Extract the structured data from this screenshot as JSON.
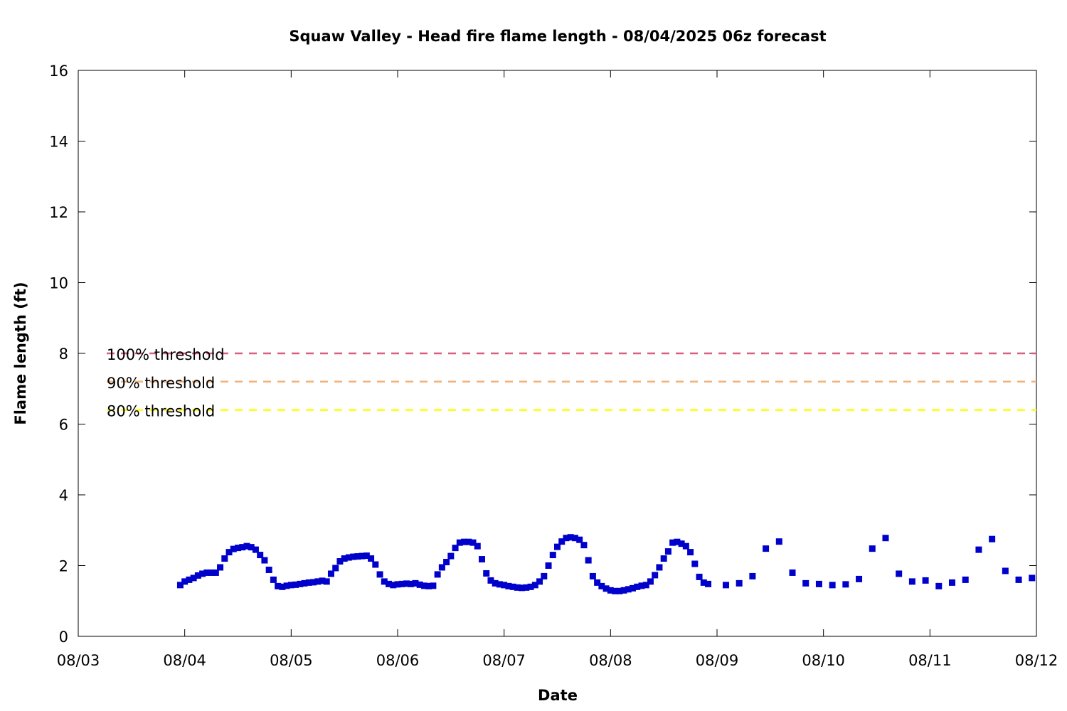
{
  "chart_data": {
    "type": "scatter",
    "title": "Squaw Valley - Head fire flame length - 08/04/2025 06z forecast",
    "xlabel": "Date",
    "ylabel": "Flame length (ft)",
    "xlim": [
      "2025-08-03T00:00",
      "2025-08-12T00:00"
    ],
    "ylim": [
      0,
      16
    ],
    "x_ticks": [
      "08/03",
      "08/04",
      "08/05",
      "08/06",
      "08/07",
      "08/08",
      "08/09",
      "08/10",
      "08/11",
      "08/12"
    ],
    "y_ticks": [
      0,
      2,
      4,
      6,
      8,
      10,
      12,
      14,
      16
    ],
    "grid": false,
    "legend_position": "left",
    "thresholds": [
      {
        "name": "100% threshold",
        "value": 8.0,
        "color": "#d95f7e",
        "style": "dashed"
      },
      {
        "name": "90% threshold",
        "value": 7.2,
        "color": "#f2b27a",
        "style": "dashed"
      },
      {
        "name": "80% threshold",
        "value": 6.4,
        "color": "#ffff00",
        "style": "dashed"
      }
    ],
    "series": [
      {
        "color": "#0000cc",
        "marker": "square",
        "x": [
          "2025-08-03T23:00",
          "2025-08-04T00:00",
          "2025-08-04T01:00",
          "2025-08-04T02:00",
          "2025-08-04T03:00",
          "2025-08-04T04:00",
          "2025-08-04T05:00",
          "2025-08-04T06:00",
          "2025-08-04T07:00",
          "2025-08-04T08:00",
          "2025-08-04T09:00",
          "2025-08-04T10:00",
          "2025-08-04T11:00",
          "2025-08-04T12:00",
          "2025-08-04T13:00",
          "2025-08-04T14:00",
          "2025-08-04T15:00",
          "2025-08-04T16:00",
          "2025-08-04T17:00",
          "2025-08-04T18:00",
          "2025-08-04T19:00",
          "2025-08-04T20:00",
          "2025-08-04T21:00",
          "2025-08-04T22:00",
          "2025-08-04T23:00",
          "2025-08-05T00:00",
          "2025-08-05T01:00",
          "2025-08-05T02:00",
          "2025-08-05T03:00",
          "2025-08-05T04:00",
          "2025-08-05T05:00",
          "2025-08-05T06:00",
          "2025-08-05T07:00",
          "2025-08-05T08:00",
          "2025-08-05T09:00",
          "2025-08-05T10:00",
          "2025-08-05T11:00",
          "2025-08-05T12:00",
          "2025-08-05T13:00",
          "2025-08-05T14:00",
          "2025-08-05T15:00",
          "2025-08-05T16:00",
          "2025-08-05T17:00",
          "2025-08-05T18:00",
          "2025-08-05T19:00",
          "2025-08-05T20:00",
          "2025-08-05T21:00",
          "2025-08-05T22:00",
          "2025-08-05T23:00",
          "2025-08-06T00:00",
          "2025-08-06T01:00",
          "2025-08-06T02:00",
          "2025-08-06T03:00",
          "2025-08-06T04:00",
          "2025-08-06T05:00",
          "2025-08-06T06:00",
          "2025-08-06T07:00",
          "2025-08-06T08:00",
          "2025-08-06T09:00",
          "2025-08-06T10:00",
          "2025-08-06T11:00",
          "2025-08-06T12:00",
          "2025-08-06T13:00",
          "2025-08-06T14:00",
          "2025-08-06T15:00",
          "2025-08-06T16:00",
          "2025-08-06T17:00",
          "2025-08-06T18:00",
          "2025-08-06T19:00",
          "2025-08-06T20:00",
          "2025-08-06T21:00",
          "2025-08-06T22:00",
          "2025-08-06T23:00",
          "2025-08-07T00:00",
          "2025-08-07T01:00",
          "2025-08-07T02:00",
          "2025-08-07T03:00",
          "2025-08-07T04:00",
          "2025-08-07T05:00",
          "2025-08-07T06:00",
          "2025-08-07T07:00",
          "2025-08-07T08:00",
          "2025-08-07T09:00",
          "2025-08-07T10:00",
          "2025-08-07T11:00",
          "2025-08-07T12:00",
          "2025-08-07T13:00",
          "2025-08-07T14:00",
          "2025-08-07T15:00",
          "2025-08-07T16:00",
          "2025-08-07T17:00",
          "2025-08-07T18:00",
          "2025-08-07T19:00",
          "2025-08-07T20:00",
          "2025-08-07T21:00",
          "2025-08-07T22:00",
          "2025-08-07T23:00",
          "2025-08-08T00:00",
          "2025-08-08T01:00",
          "2025-08-08T02:00",
          "2025-08-08T03:00",
          "2025-08-08T04:00",
          "2025-08-08T05:00",
          "2025-08-08T06:00",
          "2025-08-08T07:00",
          "2025-08-08T08:00",
          "2025-08-08T09:00",
          "2025-08-08T10:00",
          "2025-08-08T11:00",
          "2025-08-08T12:00",
          "2025-08-08T13:00",
          "2025-08-08T14:00",
          "2025-08-08T15:00",
          "2025-08-08T16:00",
          "2025-08-08T17:00",
          "2025-08-08T18:00",
          "2025-08-08T19:00",
          "2025-08-08T20:00",
          "2025-08-08T21:00",
          "2025-08-08T22:00",
          "2025-08-09T02:00",
          "2025-08-09T05:00",
          "2025-08-09T08:00",
          "2025-08-09T11:00",
          "2025-08-09T14:00",
          "2025-08-09T17:00",
          "2025-08-09T20:00",
          "2025-08-09T23:00",
          "2025-08-10T02:00",
          "2025-08-10T05:00",
          "2025-08-10T08:00",
          "2025-08-10T11:00",
          "2025-08-10T14:00",
          "2025-08-10T17:00",
          "2025-08-10T20:00",
          "2025-08-10T23:00",
          "2025-08-11T02:00",
          "2025-08-11T05:00",
          "2025-08-11T08:00",
          "2025-08-11T11:00",
          "2025-08-11T14:00",
          "2025-08-11T17:00",
          "2025-08-11T20:00",
          "2025-08-11T23:00"
        ],
        "y": [
          1.45,
          1.55,
          1.6,
          1.65,
          1.72,
          1.77,
          1.8,
          1.8,
          1.8,
          1.95,
          2.2,
          2.38,
          2.47,
          2.5,
          2.52,
          2.55,
          2.52,
          2.45,
          2.3,
          2.15,
          1.88,
          1.6,
          1.42,
          1.4,
          1.43,
          1.45,
          1.46,
          1.48,
          1.5,
          1.52,
          1.53,
          1.55,
          1.57,
          1.55,
          1.77,
          1.93,
          2.12,
          2.2,
          2.23,
          2.25,
          2.26,
          2.27,
          2.28,
          2.2,
          2.03,
          1.75,
          1.55,
          1.48,
          1.45,
          1.47,
          1.48,
          1.49,
          1.48,
          1.5,
          1.46,
          1.43,
          1.42,
          1.43,
          1.75,
          1.95,
          2.1,
          2.27,
          2.5,
          2.65,
          2.67,
          2.67,
          2.65,
          2.55,
          2.18,
          1.78,
          1.58,
          1.5,
          1.47,
          1.45,
          1.42,
          1.4,
          1.38,
          1.37,
          1.38,
          1.4,
          1.45,
          1.55,
          1.7,
          2.0,
          2.3,
          2.53,
          2.68,
          2.78,
          2.8,
          2.78,
          2.73,
          2.58,
          2.15,
          1.7,
          1.52,
          1.42,
          1.35,
          1.3,
          1.28,
          1.28,
          1.3,
          1.33,
          1.36,
          1.4,
          1.43,
          1.45,
          1.55,
          1.73,
          1.95,
          2.2,
          2.4,
          2.65,
          2.67,
          2.62,
          2.55,
          2.38,
          2.05,
          1.68,
          1.52,
          1.48,
          1.45,
          1.5,
          1.7,
          2.48,
          2.68,
          1.8,
          1.5,
          1.48,
          1.45,
          1.47,
          1.62,
          2.48,
          2.78,
          1.77,
          1.55,
          1.58,
          1.42,
          1.52,
          1.6,
          2.45,
          2.75,
          1.85,
          1.6,
          1.65
        ]
      }
    ]
  }
}
